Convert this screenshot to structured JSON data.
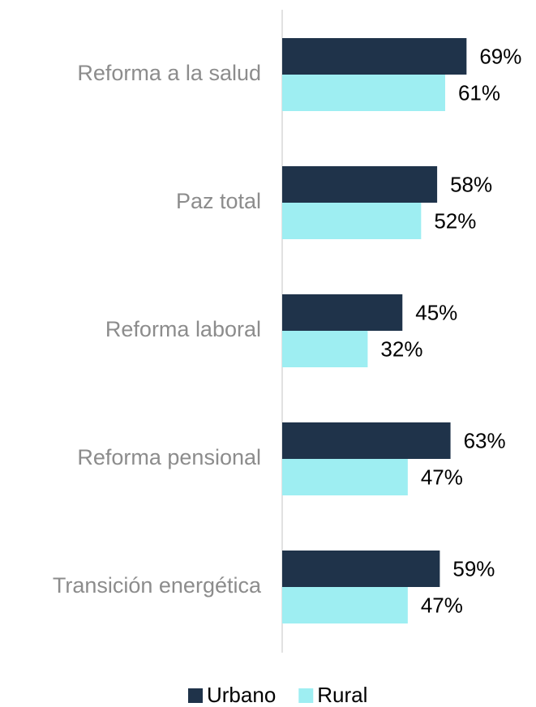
{
  "chart_data": {
    "type": "bar",
    "orientation": "horizontal",
    "categories": [
      "Reforma a la salud",
      "Paz total",
      "Reforma laboral",
      "Reforma pensional",
      "Transición energética"
    ],
    "series": [
      {
        "name": "Urbano",
        "color": "#1f334a",
        "values": [
          69,
          58,
          45,
          63,
          59
        ],
        "value_labels": [
          "69%",
          "58%",
          "45%",
          "63%",
          "59%"
        ]
      },
      {
        "name": "Rural",
        "color": "#9eeef2",
        "values": [
          61,
          52,
          32,
          47,
          47
        ],
        "value_labels": [
          "61%",
          "52%",
          "32%",
          "47%",
          "47%"
        ]
      }
    ],
    "xlim": [
      0,
      95
    ],
    "legend": "bottom"
  }
}
